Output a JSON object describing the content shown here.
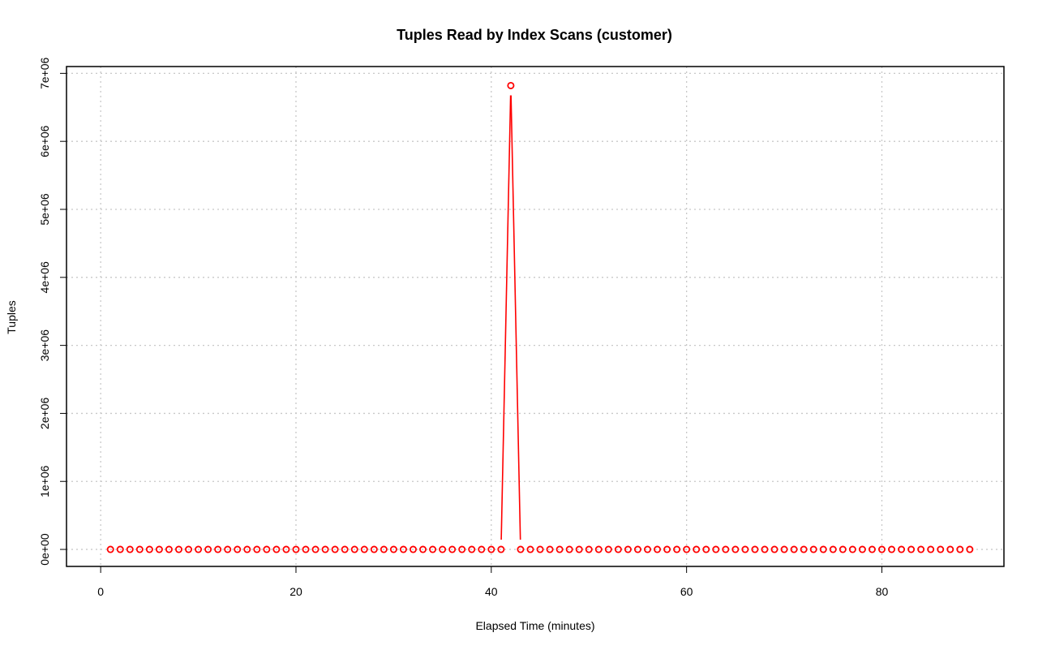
{
  "chart_data": {
    "type": "line",
    "title": "Tuples Read by Index Scans (customer)",
    "xlabel": "Elapsed Time (minutes)",
    "ylabel": "Tuples",
    "xlim": [
      -3.5,
      92.5
    ],
    "ylim": [
      -250000,
      7100000
    ],
    "x_ticks": [
      0,
      20,
      40,
      60,
      80
    ],
    "x_tick_labels": [
      "0",
      "20",
      "40",
      "60",
      "80"
    ],
    "y_ticks": [
      0,
      1000000,
      2000000,
      3000000,
      4000000,
      5000000,
      6000000,
      7000000
    ],
    "y_tick_labels": [
      "0e+00",
      "1e+06",
      "2e+06",
      "3e+06",
      "4e+06",
      "5e+06",
      "6e+06",
      "7e+06"
    ],
    "grid": true,
    "series": [
      {
        "color": "#ff0000",
        "marker": "open-circle",
        "x": [
          1,
          2,
          3,
          4,
          5,
          6,
          7,
          8,
          9,
          10,
          11,
          12,
          13,
          14,
          15,
          16,
          17,
          18,
          19,
          20,
          21,
          22,
          23,
          24,
          25,
          26,
          27,
          28,
          29,
          30,
          31,
          32,
          33,
          34,
          35,
          36,
          37,
          38,
          39,
          40,
          41,
          42,
          43,
          44,
          45,
          46,
          47,
          48,
          49,
          50,
          51,
          52,
          53,
          54,
          55,
          56,
          57,
          58,
          59,
          60,
          61,
          62,
          63,
          64,
          65,
          66,
          67,
          68,
          69,
          70,
          71,
          72,
          73,
          74,
          75,
          76,
          77,
          78,
          79,
          80,
          81,
          82,
          83,
          84,
          85,
          86,
          87,
          88,
          89
        ],
        "values": [
          0,
          0,
          0,
          0,
          0,
          0,
          0,
          0,
          0,
          0,
          0,
          0,
          0,
          0,
          0,
          0,
          0,
          0,
          0,
          0,
          0,
          0,
          0,
          0,
          0,
          0,
          0,
          0,
          0,
          0,
          0,
          0,
          0,
          0,
          0,
          0,
          0,
          0,
          0,
          0,
          0,
          6820000,
          0,
          0,
          0,
          0,
          0,
          0,
          0,
          0,
          0,
          0,
          0,
          0,
          0,
          0,
          0,
          0,
          0,
          0,
          0,
          0,
          0,
          0,
          0,
          0,
          0,
          0,
          0,
          0,
          0,
          0,
          0,
          0,
          0,
          0,
          0,
          0,
          0,
          0,
          0,
          0,
          0,
          0,
          0,
          0,
          0,
          0,
          0
        ]
      }
    ]
  }
}
